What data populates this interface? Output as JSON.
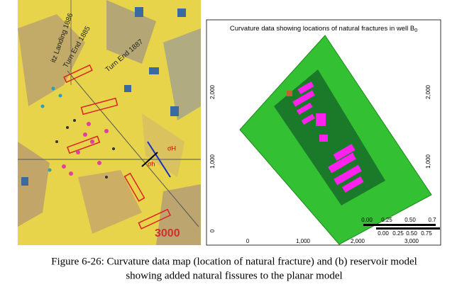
{
  "figure": {
    "left_panel": {
      "labels": [
        "itz Landing 1886",
        "Turn End 1885",
        "Turn End 1887",
        "σH",
        "σh",
        "3000"
      ]
    },
    "right_panel": {
      "title": "Curvature data showing locations of natural fractures in well B",
      "title_subscript": "0",
      "y_ticks_left": [
        "2,000",
        "1,000",
        "0"
      ],
      "y_ticks_right": [
        "2,000",
        "1,000"
      ],
      "x_ticks": [
        "0",
        "1,000",
        "2,000",
        "3,000"
      ],
      "scale_bars": [
        [
          "0.00",
          "0.25",
          "0.50",
          "0.7"
        ],
        [
          "0.00",
          "0.25",
          "0.50",
          "0.75"
        ]
      ]
    },
    "caption": [
      "Figure 6-26: Curvature data map (location of natural fracture) and (b) reservoir model",
      "showing added natural fissures to the planar model"
    ]
  }
}
